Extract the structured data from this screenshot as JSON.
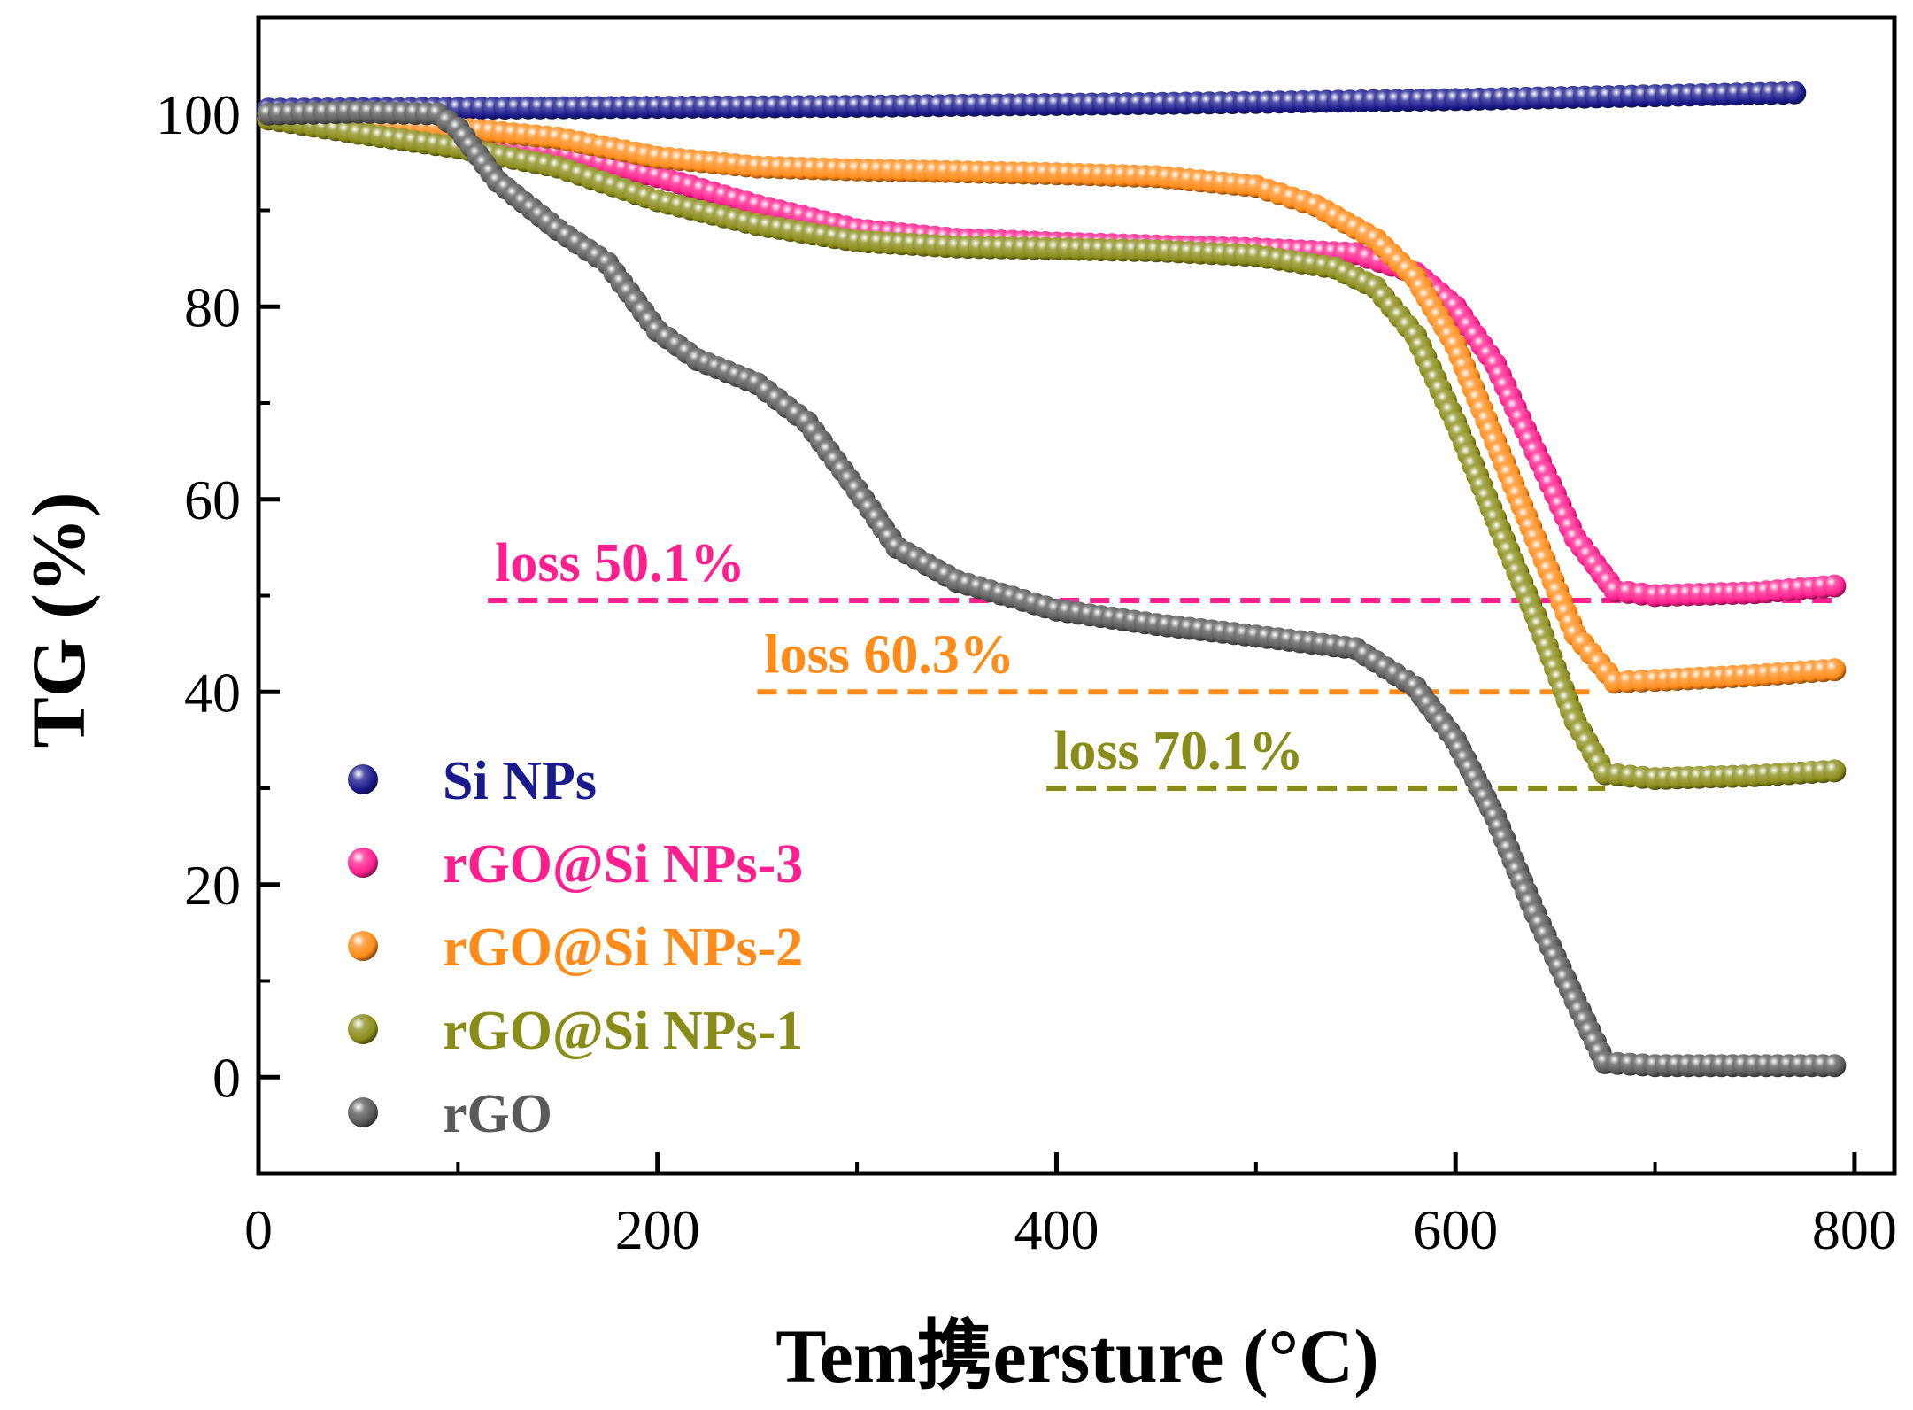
{
  "chart_data": {
    "type": "scatter",
    "title": "",
    "xlabel": "Tem携ersture (°C)",
    "ylabel": "TG (%)",
    "xlim": [
      0,
      820
    ],
    "ylim": [
      -10,
      110
    ],
    "x_ticks": [
      0,
      200,
      400,
      600,
      800
    ],
    "y_ticks": [
      0,
      20,
      40,
      60,
      80,
      100
    ],
    "x_tick_labels": [
      "0",
      "200",
      "400",
      "600",
      "800"
    ],
    "y_tick_labels": [
      "0",
      "20",
      "40",
      "60",
      "80",
      "100"
    ],
    "grid": false,
    "legend_position": "bottom-left",
    "series": [
      {
        "name": "Si NPs",
        "color": "#1a1a8c",
        "points": [
          [
            5,
            100.5
          ],
          [
            100,
            100.6
          ],
          [
            200,
            100.7
          ],
          [
            300,
            100.8
          ],
          [
            400,
            101.0
          ],
          [
            500,
            101.2
          ],
          [
            600,
            101.5
          ],
          [
            700,
            101.9
          ],
          [
            770,
            102.2
          ]
        ]
      },
      {
        "name": "rGO@Si NPs-3",
        "color": "#ff1f8e",
        "points": [
          [
            5,
            99.5
          ],
          [
            50,
            98.7
          ],
          [
            100,
            97.5
          ],
          [
            150,
            96.0
          ],
          [
            200,
            93.5
          ],
          [
            250,
            90.5
          ],
          [
            300,
            88.0
          ],
          [
            350,
            87.0
          ],
          [
            400,
            86.6
          ],
          [
            450,
            86.3
          ],
          [
            500,
            86.0
          ],
          [
            550,
            85.5
          ],
          [
            580,
            83.5
          ],
          [
            600,
            80.0
          ],
          [
            620,
            74.0
          ],
          [
            640,
            65.0
          ],
          [
            660,
            56.0
          ],
          [
            680,
            50.5
          ],
          [
            700,
            50.0
          ],
          [
            750,
            50.3
          ],
          [
            790,
            51.0
          ]
        ]
      },
      {
        "name": "rGO@Si NPs-2",
        "color": "#ff8c1a",
        "points": [
          [
            5,
            99.5
          ],
          [
            50,
            99.0
          ],
          [
            100,
            98.5
          ],
          [
            150,
            97.5
          ],
          [
            200,
            95.5
          ],
          [
            250,
            94.5
          ],
          [
            300,
            94.2
          ],
          [
            350,
            94.0
          ],
          [
            400,
            93.8
          ],
          [
            450,
            93.5
          ],
          [
            500,
            92.5
          ],
          [
            530,
            90.5
          ],
          [
            560,
            87.0
          ],
          [
            580,
            83.0
          ],
          [
            600,
            76.0
          ],
          [
            620,
            66.0
          ],
          [
            640,
            56.0
          ],
          [
            660,
            46.0
          ],
          [
            680,
            41.0
          ],
          [
            700,
            41.2
          ],
          [
            750,
            41.7
          ],
          [
            790,
            42.3
          ]
        ]
      },
      {
        "name": "rGO@Si NPs-1",
        "color": "#8a8c1a",
        "points": [
          [
            5,
            99.5
          ],
          [
            50,
            98.0
          ],
          [
            100,
            96.5
          ],
          [
            150,
            94.5
          ],
          [
            200,
            91.0
          ],
          [
            250,
            88.5
          ],
          [
            300,
            86.8
          ],
          [
            350,
            86.2
          ],
          [
            400,
            86.0
          ],
          [
            450,
            85.8
          ],
          [
            500,
            85.3
          ],
          [
            540,
            84.0
          ],
          [
            560,
            82.0
          ],
          [
            580,
            77.0
          ],
          [
            600,
            68.0
          ],
          [
            620,
            58.0
          ],
          [
            640,
            48.0
          ],
          [
            660,
            37.0
          ],
          [
            675,
            31.5
          ],
          [
            700,
            31.0
          ],
          [
            750,
            31.3
          ],
          [
            790,
            31.8
          ]
        ]
      },
      {
        "name": "rGO",
        "color": "#5a5a5a",
        "points": [
          [
            5,
            100.0
          ],
          [
            50,
            100.2
          ],
          [
            90,
            100.0
          ],
          [
            100,
            98.5
          ],
          [
            120,
            93.0
          ],
          [
            150,
            88.0
          ],
          [
            175,
            84.5
          ],
          [
            200,
            77.5
          ],
          [
            220,
            74.5
          ],
          [
            250,
            72.0
          ],
          [
            275,
            68.0
          ],
          [
            300,
            61.0
          ],
          [
            320,
            55.0
          ],
          [
            350,
            51.5
          ],
          [
            400,
            48.5
          ],
          [
            450,
            47.0
          ],
          [
            500,
            45.8
          ],
          [
            550,
            44.5
          ],
          [
            580,
            40.5
          ],
          [
            600,
            35.0
          ],
          [
            620,
            27.0
          ],
          [
            640,
            17.0
          ],
          [
            660,
            8.0
          ],
          [
            675,
            1.5
          ],
          [
            700,
            1.2
          ],
          [
            750,
            1.2
          ],
          [
            790,
            1.2
          ]
        ]
      }
    ],
    "annotations": [
      {
        "text": "loss 50.1%",
        "color": "#ff1f8e",
        "y": 49.5,
        "x_start": 115,
        "x_end": 790
      },
      {
        "text": "loss 60.3%",
        "color": "#ff8c1a",
        "y": 40.0,
        "x_start": 250,
        "x_end": 670
      },
      {
        "text": "loss 70.1%",
        "color": "#8a8c1a",
        "y": 30.0,
        "x_start": 395,
        "x_end": 675
      }
    ]
  }
}
